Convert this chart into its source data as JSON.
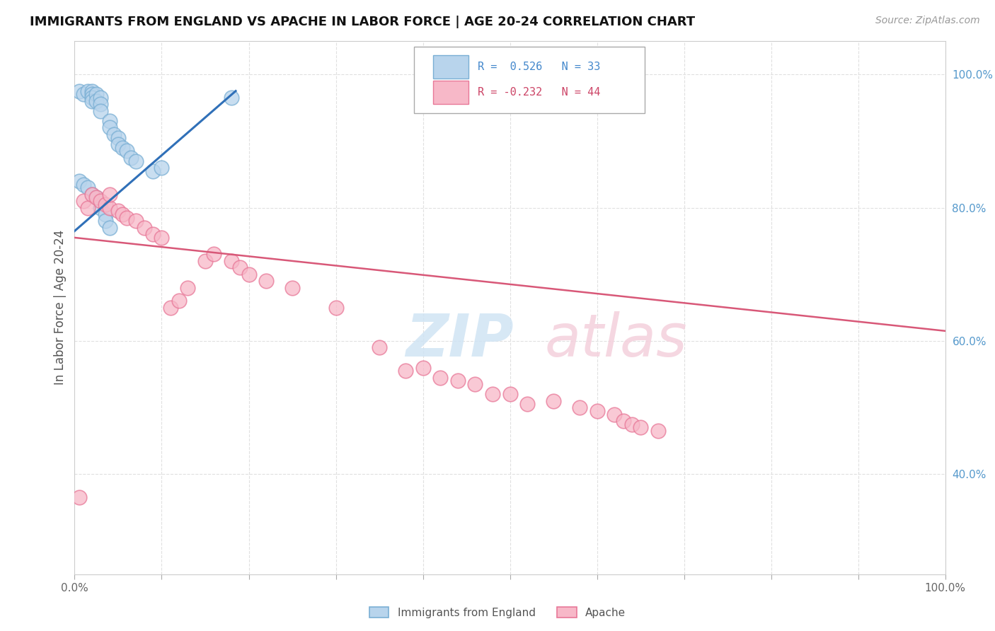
{
  "title": "IMMIGRANTS FROM ENGLAND VS APACHE IN LABOR FORCE | AGE 20-24 CORRELATION CHART",
  "source": "Source: ZipAtlas.com",
  "ylabel": "In Labor Force | Age 20-24",
  "xlim": [
    0,
    1
  ],
  "ylim": [
    0.25,
    1.05
  ],
  "y_tick_labels_right": [
    "100.0%",
    "80.0%",
    "60.0%",
    "40.0%"
  ],
  "y_ticks_right": [
    1.0,
    0.8,
    0.6,
    0.4
  ],
  "color_england": "#b8d4ec",
  "color_apache": "#f7b8c8",
  "color_england_edge": "#7aafd4",
  "color_apache_edge": "#e87898",
  "england_x": [
    0.005,
    0.01,
    0.015,
    0.02,
    0.02,
    0.02,
    0.02,
    0.025,
    0.025,
    0.03,
    0.03,
    0.03,
    0.04,
    0.04,
    0.045,
    0.05,
    0.05,
    0.055,
    0.06,
    0.065,
    0.07,
    0.09,
    0.1,
    0.005,
    0.01,
    0.015,
    0.02,
    0.025,
    0.03,
    0.035,
    0.035,
    0.04,
    0.18
  ],
  "england_y": [
    0.975,
    0.97,
    0.975,
    0.975,
    0.97,
    0.965,
    0.96,
    0.97,
    0.96,
    0.965,
    0.955,
    0.945,
    0.93,
    0.92,
    0.91,
    0.905,
    0.895,
    0.89,
    0.885,
    0.875,
    0.87,
    0.855,
    0.86,
    0.84,
    0.835,
    0.83,
    0.82,
    0.815,
    0.8,
    0.79,
    0.78,
    0.77,
    0.965
  ],
  "apache_x": [
    0.005,
    0.01,
    0.015,
    0.02,
    0.025,
    0.03,
    0.035,
    0.04,
    0.04,
    0.05,
    0.055,
    0.06,
    0.07,
    0.08,
    0.09,
    0.1,
    0.11,
    0.12,
    0.13,
    0.15,
    0.16,
    0.18,
    0.19,
    0.2,
    0.22,
    0.25,
    0.3,
    0.35,
    0.38,
    0.4,
    0.42,
    0.44,
    0.46,
    0.48,
    0.5,
    0.52,
    0.55,
    0.58,
    0.6,
    0.62,
    0.63,
    0.64,
    0.65,
    0.67
  ],
  "apache_y": [
    0.365,
    0.81,
    0.8,
    0.82,
    0.815,
    0.81,
    0.805,
    0.8,
    0.82,
    0.795,
    0.79,
    0.785,
    0.78,
    0.77,
    0.76,
    0.755,
    0.65,
    0.66,
    0.68,
    0.72,
    0.73,
    0.72,
    0.71,
    0.7,
    0.69,
    0.68,
    0.65,
    0.59,
    0.555,
    0.56,
    0.545,
    0.54,
    0.535,
    0.52,
    0.52,
    0.505,
    0.51,
    0.5,
    0.495,
    0.49,
    0.48,
    0.475,
    0.47,
    0.465
  ],
  "england_line_x": [
    0.0,
    0.185
  ],
  "england_line_y": [
    0.765,
    0.975
  ],
  "apache_line_x": [
    0.0,
    1.0
  ],
  "apache_line_y": [
    0.755,
    0.615
  ],
  "watermark_zip_color": "#d0e4f4",
  "watermark_atlas_color": "#f4d0dc",
  "background_color": "#ffffff",
  "grid_color": "#e0e0e0"
}
